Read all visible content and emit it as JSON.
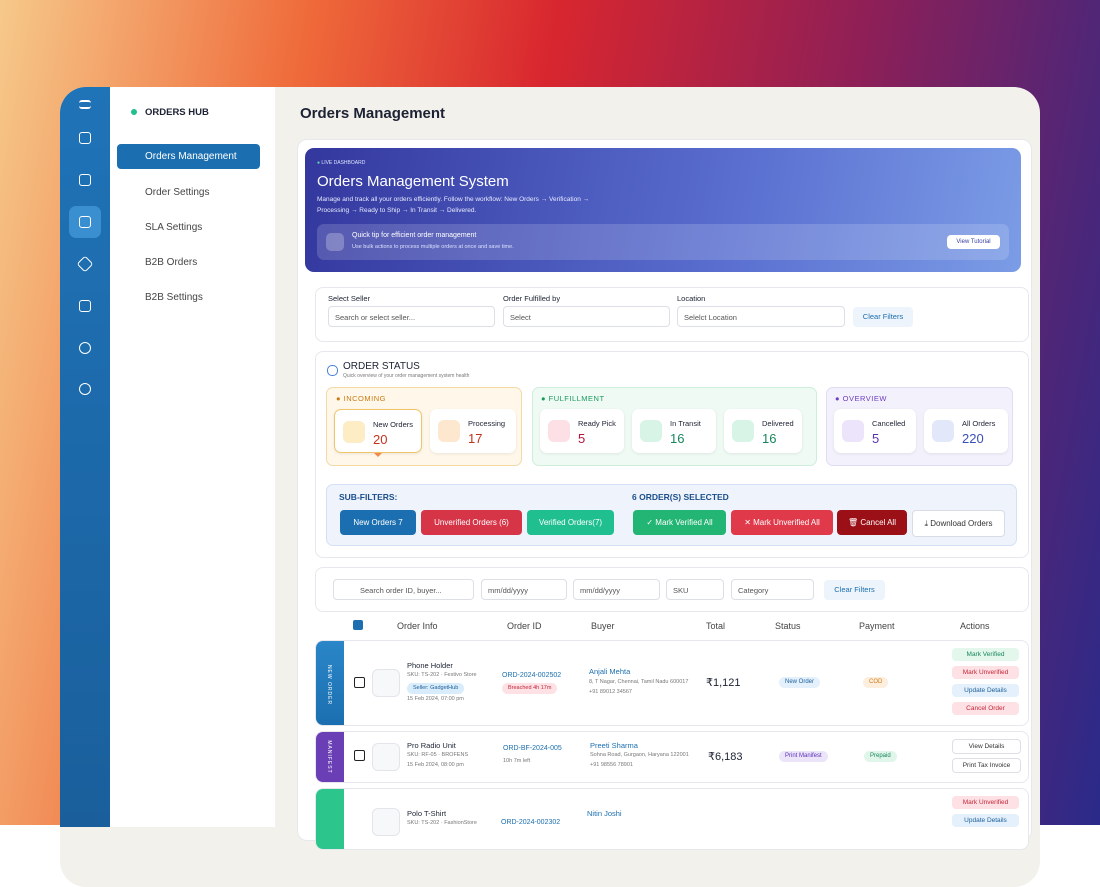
{
  "sidebar": {
    "brand": "ORDERS HUB",
    "nav": [
      "Orders Management",
      "Order Settings",
      "SLA Settings",
      "B2B Orders",
      "B2B Settings"
    ]
  },
  "header": {
    "title": "Orders Management"
  },
  "banner": {
    "badge": "LIVE DASHBOARD",
    "title": "Orders Management System",
    "description": "Manage and track all your orders efficiently. Follow the workflow: New Orders → Verification → Processing → Ready to Ship → In Transit → Delivered.",
    "tip_title": "Quick tip for efficient order management",
    "tip_text": "Use bulk actions to process multiple orders at once and save time.",
    "button": "View Tutorial"
  },
  "filters": {
    "labels": [
      "Select Seller",
      "Order Fulfilled by",
      "Location"
    ],
    "placeholders": [
      "Search or select seller...",
      "Select",
      "Selelct Location"
    ],
    "clear": "Clear Filters"
  },
  "status": {
    "title": "ORDER STATUS",
    "subtitle": "Quick overview of your order management system health",
    "groups": [
      {
        "name": "INCOMING",
        "items": [
          {
            "label": "New Orders",
            "value": 20
          },
          {
            "label": "Processing",
            "value": 17
          }
        ]
      },
      {
        "name": "FULFILLMENT",
        "items": [
          {
            "label": "Ready Pick",
            "value": 5
          },
          {
            "label": "In Transit",
            "value": 16
          },
          {
            "label": "Delivered",
            "value": 16
          }
        ]
      },
      {
        "name": "OVERVIEW",
        "items": [
          {
            "label": "Cancelled",
            "value": 5
          },
          {
            "label": "All Orders",
            "value": 220
          }
        ]
      }
    ],
    "subfilters_label": "SUB-FILTERS:",
    "subfilters": [
      "New Orders 7",
      "Unverified Orders (6)",
      "Verified Orders(7)"
    ],
    "selected": "6 ORDER(S) SELECTED",
    "actions": [
      "Mark Verified All",
      "Mark Unverified All",
      "Cancel All",
      "Download Orders"
    ]
  },
  "toolbar": {
    "search": "Search order ID, buyer...",
    "date_from": "mm/dd/yyyy",
    "date_to": "mm/dd/yyyy",
    "sku": "SKU",
    "category": "Category",
    "clear": "Clear Filters"
  },
  "table": {
    "columns": [
      "Order Info",
      "Order ID",
      "Buyer",
      "Total",
      "Status",
      "Payment",
      "Actions"
    ],
    "rows": [
      {
        "stage": "NEW ORDER",
        "product": "Phone Holder",
        "sku": "SKU: TS-202 · Festivo Store",
        "seller": "Seller: GadgetHub",
        "date": "15 Feb 2024, 07:00 pm",
        "order_id": "ORD-2024-002502",
        "sla": "Breached 4h 17m",
        "buyer": "Anjali Mehta",
        "address": "8, T Nagar, Chennai, Tamil Nadu 600017",
        "phone": "+91 89012 34567",
        "total": "₹1,121",
        "status": "New Order",
        "payment": "COD",
        "actions": [
          "Mark Verified",
          "Mark Unverified",
          "Update Details",
          "Cancel Order"
        ]
      },
      {
        "stage": "MANIFEST",
        "product": "Pro Radio Unit",
        "sku": "SKU: RF-05 · BROFENS",
        "date": "15 Feb 2024, 08:00 pm",
        "order_id": "ORD-BF-2024-005",
        "sla": "10h 7m left",
        "buyer": "Preeti Sharma",
        "address": "Sohna Road, Gurgaon, Haryana 122001",
        "phone": "+91 98556 78901",
        "total": "₹6,183",
        "status": "Print Manifest",
        "payment": "Prepaid",
        "actions": [
          "View Details",
          "Print Tax Invoice"
        ]
      },
      {
        "product": "Polo T-Shirt",
        "sku": "SKU: TS-202 · FashionStore",
        "order_id": "ORD-2024-002302",
        "buyer": "Nitin Joshi",
        "actions": [
          "Mark Unverified",
          "Update Details"
        ]
      }
    ]
  }
}
